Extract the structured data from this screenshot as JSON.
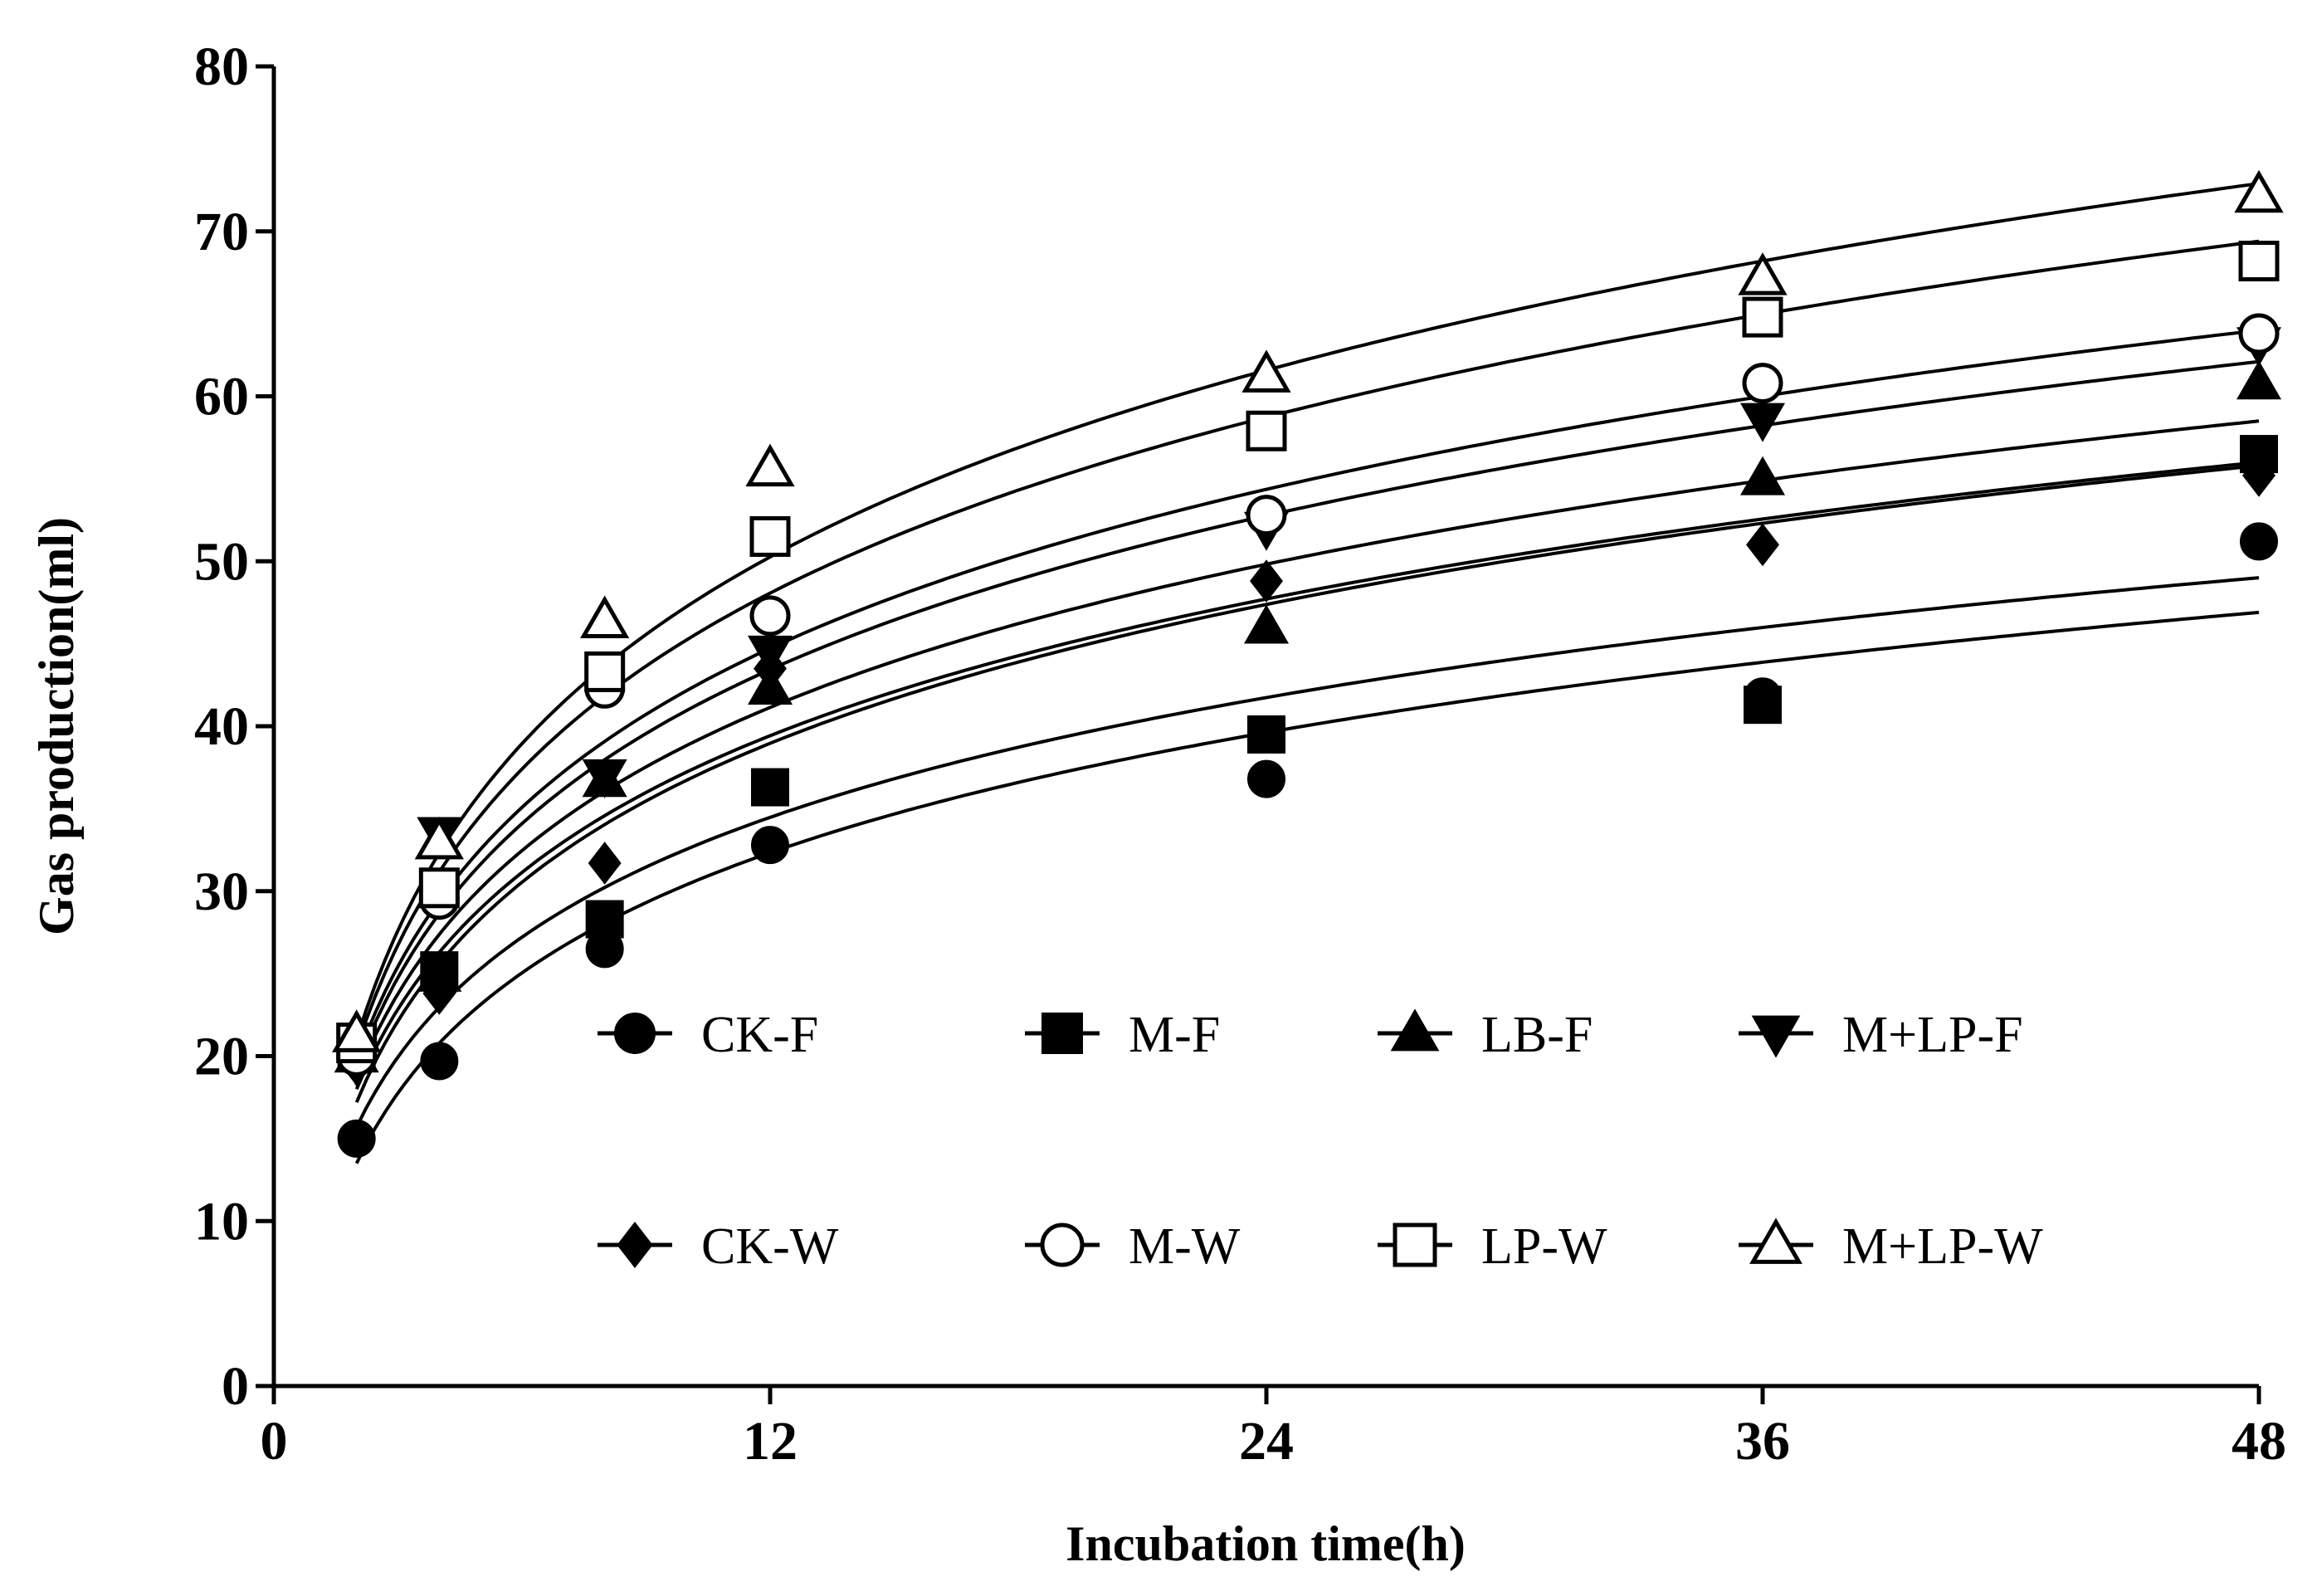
{
  "chart_data": {
    "type": "scatter",
    "title": "",
    "xlabel": "Incubation time(h)",
    "ylabel": "Gas production(ml)",
    "xlim": [
      0,
      48
    ],
    "ylim": [
      0,
      80
    ],
    "x_ticks": [
      0,
      12,
      24,
      36,
      48
    ],
    "y_ticks": [
      0,
      10,
      20,
      30,
      40,
      50,
      60,
      70,
      80
    ],
    "grid": false,
    "legend_position": "inside-center",
    "x": [
      2,
      4,
      8,
      12,
      24,
      36,
      48
    ],
    "series": [
      {
        "name": "CK-F",
        "marker": "filled-circle",
        "values": [
          15,
          19.7,
          26.5,
          32.8,
          36.8,
          41.8,
          51.2
        ],
        "fit_end": 46.9
      },
      {
        "name": "M-F",
        "marker": "filled-square",
        "values": [
          20.5,
          25.2,
          28.3,
          36.3,
          39.5,
          41.3,
          56.5
        ],
        "fit_end": 49.0
      },
      {
        "name": "LB-F",
        "marker": "filled-triangle-up",
        "values": [
          20,
          24.9,
          36.7,
          42.3,
          46,
          55,
          60.8
        ],
        "fit_end": 55.8
      },
      {
        "name": "M+LP-F",
        "marker": "filled-triangle-down",
        "values": [
          19.5,
          33.5,
          37,
          44.5,
          52,
          58.6,
          63.2
        ],
        "fit_end": 58.5
      },
      {
        "name": "CK-W",
        "marker": "filled-diamond",
        "values": [
          19.5,
          23.8,
          31.7,
          43.5,
          48.8,
          51,
          55.2
        ],
        "fit_end": 56.0
      },
      {
        "name": "M-W",
        "marker": "open-circle",
        "values": [
          20,
          29.5,
          42.3,
          46.7,
          52.8,
          60.8,
          63.8
        ],
        "fit_end": 62.1
      },
      {
        "name": "LP-W",
        "marker": "open-square",
        "values": [
          20.8,
          30.2,
          43.3,
          51.5,
          57.9,
          64.8,
          68.2
        ],
        "fit_end": 64.0
      },
      {
        "name": "M+LP-W",
        "marker": "open-triangle-up",
        "values": [
          21.3,
          33,
          46.4,
          55.6,
          61.3,
          67.2,
          72.2
        ],
        "fit_end": 69.4
      }
    ],
    "extra_fit_curve_end": 72.9
  }
}
